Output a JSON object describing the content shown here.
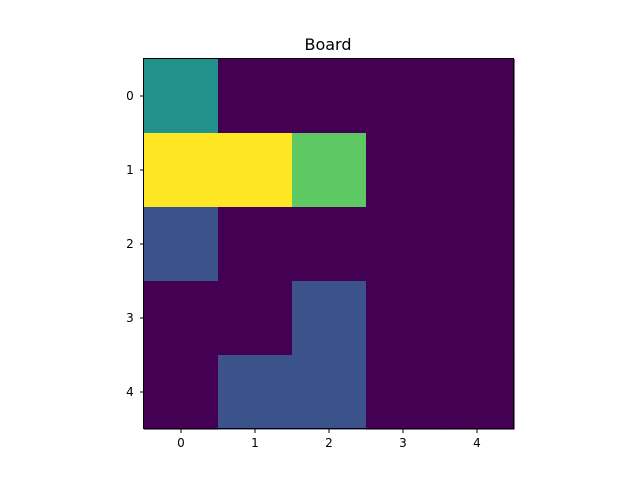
{
  "chart_data": {
    "type": "heatmap",
    "title": "Board",
    "rows": 5,
    "cols": 5,
    "x_tick_labels": [
      "0",
      "1",
      "2",
      "3",
      "4"
    ],
    "y_tick_labels": [
      "0",
      "1",
      "2",
      "3",
      "4"
    ],
    "colormap": "viridis",
    "palette": {
      "empty": "#440154",
      "blue": "#3b528b",
      "teal": "#21918c",
      "green": "#5ec962",
      "yellow": "#fde725"
    },
    "cells": [
      [
        "teal",
        "empty",
        "empty",
        "empty",
        "empty"
      ],
      [
        "yellow",
        "yellow",
        "green",
        "empty",
        "empty"
      ],
      [
        "blue",
        "empty",
        "empty",
        "empty",
        "empty"
      ],
      [
        "empty",
        "empty",
        "blue",
        "empty",
        "empty"
      ],
      [
        "empty",
        "blue",
        "blue",
        "empty",
        "empty"
      ]
    ],
    "grid": false
  }
}
